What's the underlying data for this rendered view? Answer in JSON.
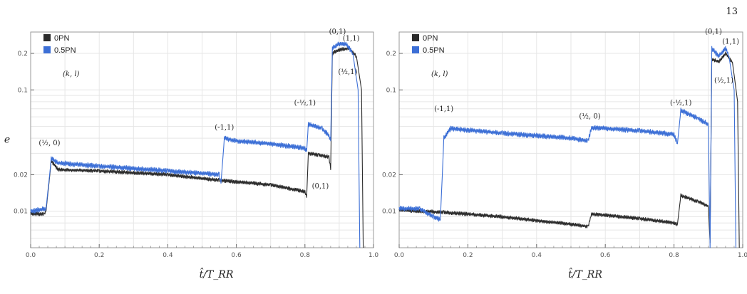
{
  "page_number": "13",
  "colors": {
    "series_0pn": "#2b2b2b",
    "series_05pn": "#3c6fd6",
    "grid": "#e6e6e6",
    "frame": "#9a9a9a"
  },
  "chart_data": [
    {
      "type": "line",
      "xlabel": "t̂/T_RR",
      "ylabel": "e",
      "xlim": [
        0,
        1.0
      ],
      "ylim": [
        0.005,
        0.3
      ],
      "yscale": "log",
      "grid": true,
      "legend_position": "top-left",
      "legend_note": "(k, l)",
      "x_ticks": [
        {
          "value": 0.0,
          "label": "0.0"
        },
        {
          "value": 0.2,
          "label": "0.2"
        },
        {
          "value": 0.4,
          "label": "0.4"
        },
        {
          "value": 0.6,
          "label": "0.6"
        },
        {
          "value": 0.8,
          "label": "0.8"
        },
        {
          "value": 1.0,
          "label": "1.0"
        }
      ],
      "y_ticks": [
        {
          "value": 0.01,
          "label": "0.01"
        },
        {
          "value": 0.02,
          "label": "0.02"
        },
        {
          "value": 0.1,
          "label": "0.1"
        },
        {
          "value": 0.2,
          "label": "0.2"
        }
      ],
      "series": [
        {
          "name": "0PN",
          "color": "#2b2b2b",
          "points": [
            [
              0.0,
              0.0095
            ],
            [
              0.04,
              0.0095
            ],
            [
              0.045,
              0.01
            ],
            [
              0.06,
              0.026
            ],
            [
              0.08,
              0.022
            ],
            [
              0.2,
              0.0215
            ],
            [
              0.4,
              0.02
            ],
            [
              0.55,
              0.018
            ],
            [
              0.7,
              0.0165
            ],
            [
              0.8,
              0.0145
            ],
            [
              0.805,
              0.013
            ],
            [
              0.81,
              0.03
            ],
            [
              0.84,
              0.029
            ],
            [
              0.87,
              0.028
            ],
            [
              0.875,
              0.022
            ],
            [
              0.88,
              0.2
            ],
            [
              0.9,
              0.215
            ],
            [
              0.93,
              0.22
            ],
            [
              0.95,
              0.19
            ],
            [
              0.965,
              0.1
            ],
            [
              0.97,
              0.005
            ]
          ]
        },
        {
          "name": "0.5PN",
          "color": "#3c6fd6",
          "points": [
            [
              0.0,
              0.01
            ],
            [
              0.045,
              0.0105
            ],
            [
              0.06,
              0.027
            ],
            [
              0.08,
              0.025
            ],
            [
              0.2,
              0.0235
            ],
            [
              0.4,
              0.0215
            ],
            [
              0.5,
              0.0205
            ],
            [
              0.55,
              0.02
            ],
            [
              0.555,
              0.017
            ],
            [
              0.565,
              0.04
            ],
            [
              0.6,
              0.038
            ],
            [
              0.7,
              0.036
            ],
            [
              0.8,
              0.033
            ],
            [
              0.805,
              0.031
            ],
            [
              0.81,
              0.052
            ],
            [
              0.85,
              0.048
            ],
            [
              0.87,
              0.042
            ],
            [
              0.875,
              0.038
            ],
            [
              0.88,
              0.22
            ],
            [
              0.9,
              0.24
            ],
            [
              0.92,
              0.24
            ],
            [
              0.94,
              0.2
            ],
            [
              0.955,
              0.1
            ],
            [
              0.96,
              0.005
            ]
          ]
        }
      ],
      "annotations": [
        {
          "label": "(½, 0)",
          "x": 0.055,
          "y": 0.035
        },
        {
          "label": "(-1,1)",
          "x": 0.565,
          "y": 0.047
        },
        {
          "label": "(-½,1)",
          "x": 0.8,
          "y": 0.075
        },
        {
          "label": "(0,1)",
          "x": 0.895,
          "y": 0.29
        },
        {
          "label": "(1,1)",
          "x": 0.935,
          "y": 0.255
        },
        {
          "label": "(½,1)",
          "x": 0.925,
          "y": 0.135
        },
        {
          "label": "(0,1)",
          "x": 0.845,
          "y": 0.0155
        }
      ]
    },
    {
      "type": "line",
      "xlabel": "t̂/T_RR",
      "ylabel": "",
      "xlim": [
        0,
        1.0
      ],
      "ylim": [
        0.005,
        0.3
      ],
      "yscale": "log",
      "grid": true,
      "legend_position": "top-left",
      "legend_note": "(k, l)",
      "x_ticks": [
        {
          "value": 0.0,
          "label": "0.0"
        },
        {
          "value": 0.2,
          "label": "0.2"
        },
        {
          "value": 0.4,
          "label": "0.4"
        },
        {
          "value": 0.6,
          "label": "0.6"
        },
        {
          "value": 0.8,
          "label": "0.8"
        },
        {
          "value": 1.0,
          "label": "1.0"
        }
      ],
      "y_ticks": [
        {
          "value": 0.01,
          "label": "0.01"
        },
        {
          "value": 0.02,
          "label": "0.02"
        },
        {
          "value": 0.1,
          "label": "0.1"
        },
        {
          "value": 0.2,
          "label": "0.2"
        }
      ],
      "series": [
        {
          "name": "0PN",
          "color": "#2b2b2b",
          "points": [
            [
              0.0,
              0.0102
            ],
            [
              0.13,
              0.0098
            ],
            [
              0.3,
              0.009
            ],
            [
              0.5,
              0.0078
            ],
            [
              0.55,
              0.0075
            ],
            [
              0.56,
              0.0095
            ],
            [
              0.7,
              0.0087
            ],
            [
              0.8,
              0.008
            ],
            [
              0.81,
              0.0078
            ],
            [
              0.82,
              0.0135
            ],
            [
              0.87,
              0.012
            ],
            [
              0.9,
              0.011
            ],
            [
              0.905,
              0.0055
            ],
            [
              0.91,
              0.18
            ],
            [
              0.93,
              0.17
            ],
            [
              0.95,
              0.2
            ],
            [
              0.97,
              0.17
            ],
            [
              0.985,
              0.08
            ],
            [
              0.99,
              0.005
            ]
          ]
        },
        {
          "name": "0.5PN",
          "color": "#3c6fd6",
          "points": [
            [
              0.0,
              0.0105
            ],
            [
              0.06,
              0.0105
            ],
            [
              0.1,
              0.009
            ],
            [
              0.12,
              0.0085
            ],
            [
              0.13,
              0.04
            ],
            [
              0.15,
              0.048
            ],
            [
              0.3,
              0.044
            ],
            [
              0.5,
              0.04
            ],
            [
              0.55,
              0.038
            ],
            [
              0.56,
              0.049
            ],
            [
              0.7,
              0.046
            ],
            [
              0.8,
              0.043
            ],
            [
              0.81,
              0.036
            ],
            [
              0.82,
              0.068
            ],
            [
              0.87,
              0.058
            ],
            [
              0.9,
              0.052
            ],
            [
              0.905,
              0.005
            ],
            [
              0.91,
              0.22
            ],
            [
              0.93,
              0.19
            ],
            [
              0.95,
              0.22
            ],
            [
              0.96,
              0.19
            ],
            [
              0.975,
              0.1
            ],
            [
              0.98,
              0.005
            ]
          ]
        }
      ],
      "annotations": [
        {
          "label": "(-1,1)",
          "x": 0.13,
          "y": 0.067
        },
        {
          "label": "(½, 0)",
          "x": 0.555,
          "y": 0.058
        },
        {
          "label": "(-½,1)",
          "x": 0.82,
          "y": 0.075
        },
        {
          "label": "(0,1)",
          "x": 0.915,
          "y": 0.29
        },
        {
          "label": "(1,1)",
          "x": 0.965,
          "y": 0.24
        },
        {
          "label": "(½,1)",
          "x": 0.945,
          "y": 0.115
        }
      ]
    }
  ]
}
